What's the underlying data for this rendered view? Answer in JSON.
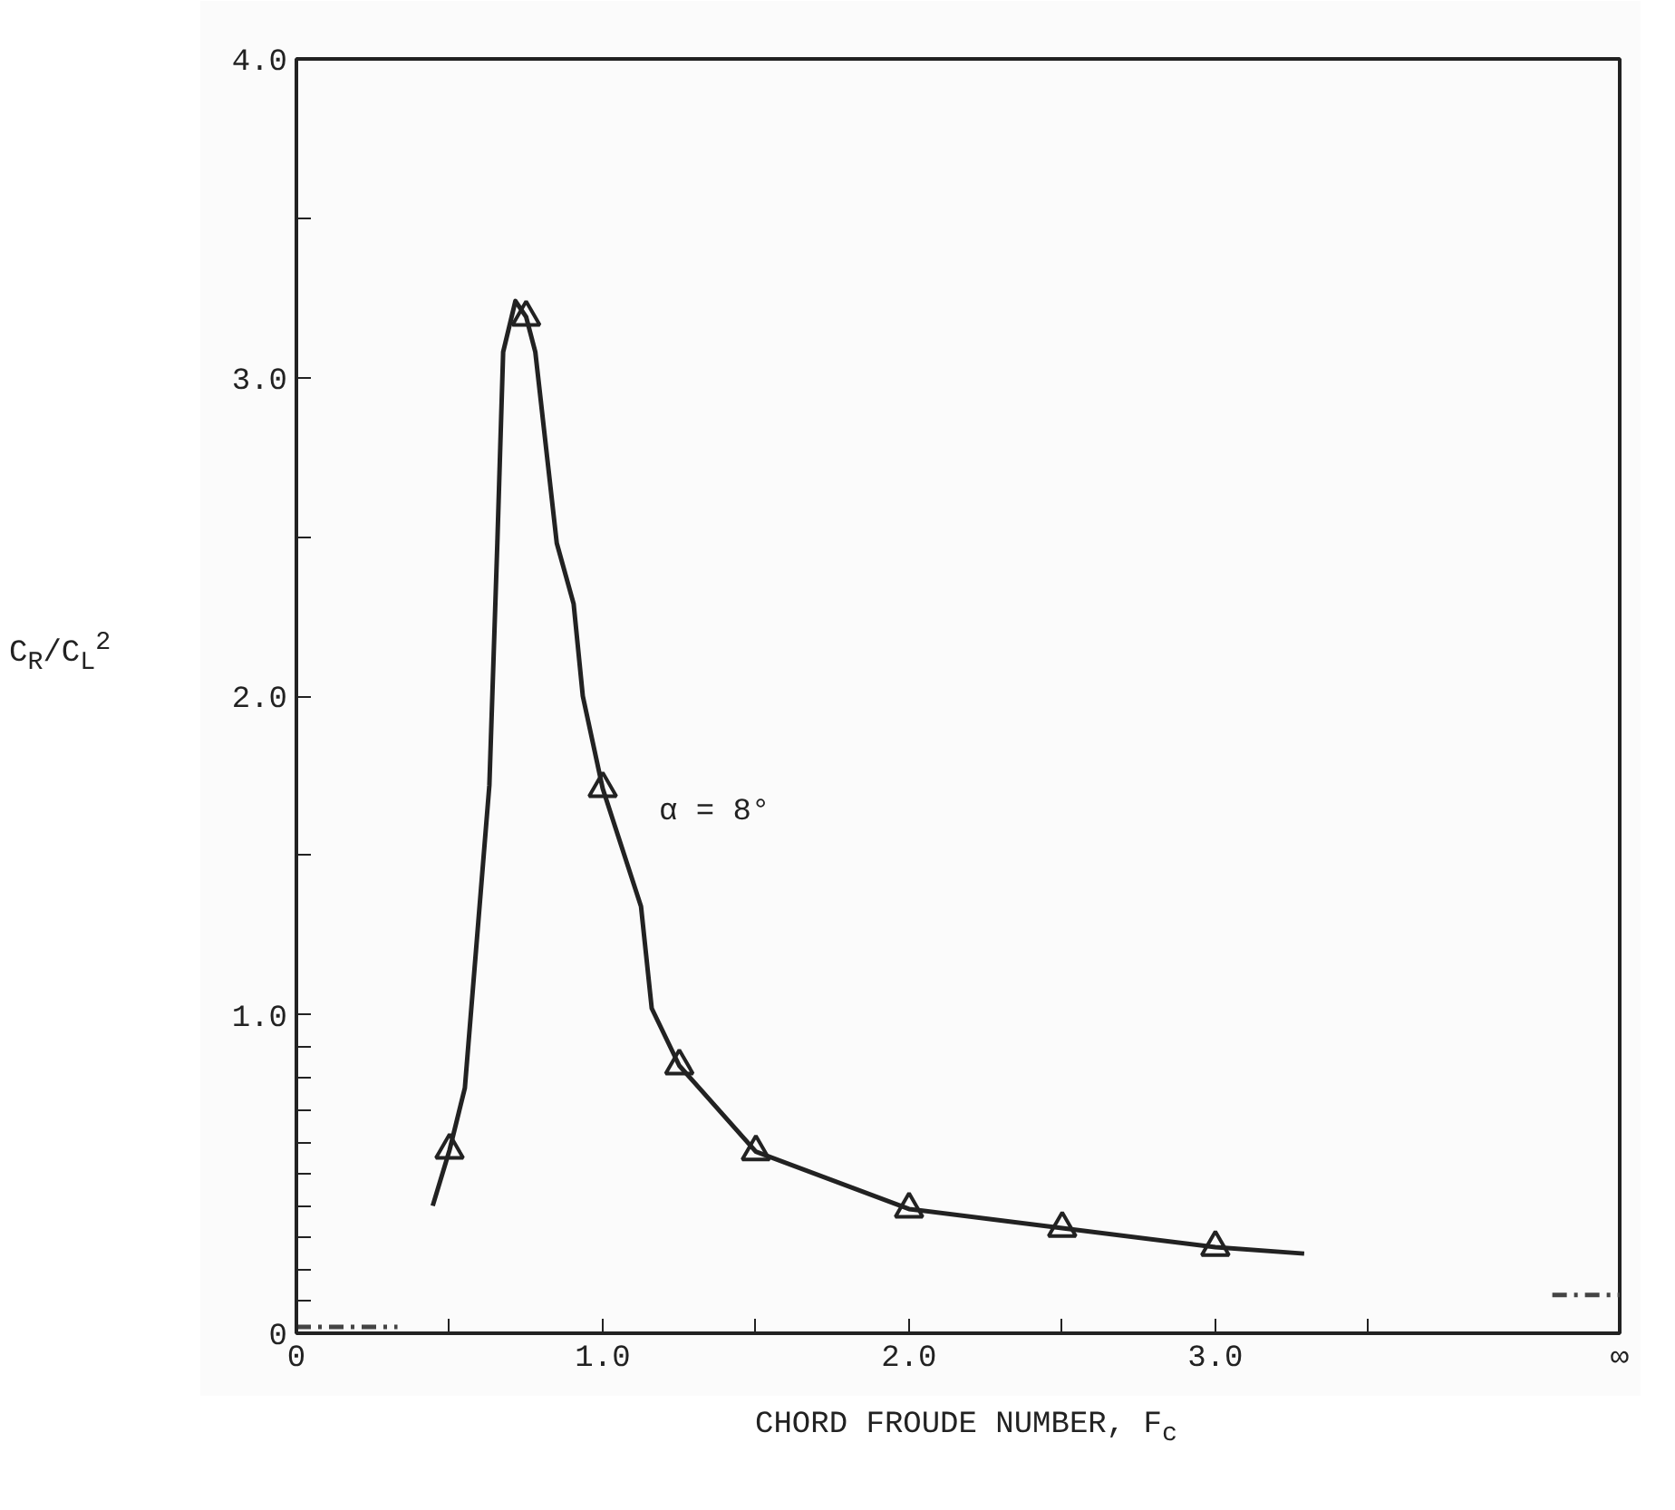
{
  "chart_data": {
    "type": "line",
    "xlabel": "CHORD FROUDE NUMBER, F$_{c}$",
    "ylabel": "C$_{R}$/C$_{L}$$^{2}$",
    "annotations": [
      "α = 8°"
    ],
    "xlim": [
      0,
      4.32
    ],
    "ylim": [
      0,
      4.0
    ],
    "xticks": [
      0,
      {
        "value": 0.5,
        "label": null
      },
      {
        "value": 1,
        "label": "1.0"
      },
      {
        "value": 1.5,
        "label": null
      },
      {
        "value": 2,
        "label": "2.0"
      },
      {
        "value": 2.5,
        "label": null
      },
      {
        "value": 3,
        "label": "3.0"
      },
      {
        "value": 3.5,
        "label": null
      },
      {
        "value": 4.32,
        "label": "∞"
      }
    ],
    "yticks": [
      0,
      {
        "value": 0.1,
        "label": null
      },
      {
        "value": 0.2,
        "label": null
      },
      {
        "value": 0.3,
        "label": null
      },
      {
        "value": 0.4,
        "label": null
      },
      {
        "value": 0.5,
        "label": null
      },
      {
        "value": 0.6,
        "label": null
      },
      {
        "value": 0.7,
        "label": null
      },
      {
        "value": 0.8,
        "label": null
      },
      {
        "value": 0.9,
        "label": null
      },
      {
        "value": 1,
        "label": "1.0"
      },
      {
        "value": 1.5,
        "label": null
      },
      {
        "value": 2,
        "label": "2.0"
      },
      {
        "value": 2.5,
        "label": null
      },
      {
        "value": 3,
        "label": "3.0"
      },
      {
        "value": 3.5,
        "label": null
      },
      {
        "value": 4,
        "label": "4.0"
      }
    ],
    "grid": false,
    "series": [
      {
        "color": "#222222",
        "marker": "none",
        "line_style": "solid",
        "x": [
          0.445,
          0.5,
          0.55,
          0.63,
          0.656,
          0.675,
          0.715,
          0.75,
          0.78,
          0.85,
          0.905,
          0.935,
          1.0,
          1.125,
          1.16,
          1.25,
          1.5,
          2.0,
          2.5,
          3.0,
          3.29
        ],
        "values": [
          0.4,
          0.575,
          0.77,
          1.72,
          2.48,
          3.08,
          3.24,
          3.19,
          3.08,
          2.48,
          2.29,
          2.0,
          1.71,
          1.34,
          1.02,
          0.84,
          0.57,
          0.39,
          0.33,
          0.27,
          0.25
        ]
      },
      {
        "type": "scatter",
        "color": "#222222",
        "marker": "triangle",
        "x": [
          0.5,
          0.75,
          1.0,
          1.25,
          1.5,
          2.0,
          2.5,
          3.0
        ],
        "values": [
          0.575,
          3.19,
          1.71,
          0.84,
          0.57,
          0.39,
          0.33,
          0.27
        ]
      },
      {
        "type": "line",
        "color": "#444444",
        "marker": "none",
        "line_style": "dashed",
        "x": [
          0.0,
          0.33
        ],
        "values": [
          0.02,
          0.02
        ]
      },
      {
        "type": "line",
        "color": "#444444",
        "marker": "none",
        "line_style": "dashed",
        "x": [
          4.1,
          4.32
        ],
        "values": [
          0.12,
          0.12
        ]
      }
    ]
  }
}
